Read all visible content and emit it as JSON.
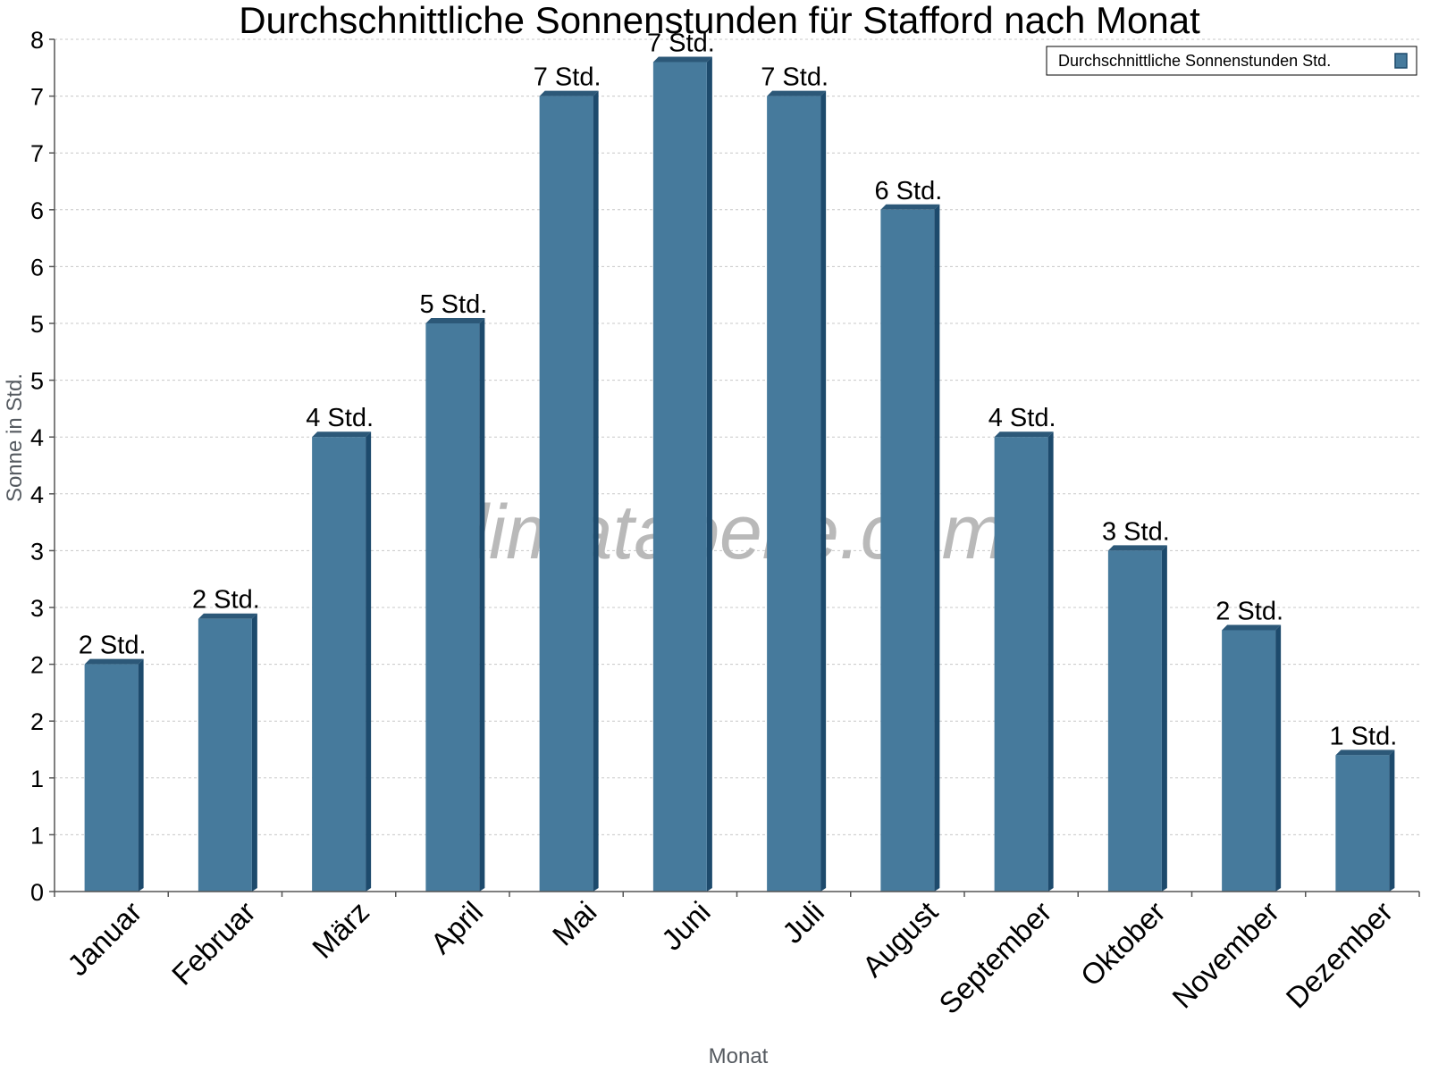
{
  "chart_data": {
    "type": "bar",
    "title": "Durchschnittliche Sonnenstunden für Stafford nach Monat",
    "xlabel": "Monat",
    "ylabel": "Sonne in Std.",
    "categories": [
      "Januar",
      "Februar",
      "März",
      "April",
      "Mai",
      "Juni",
      "Juli",
      "August",
      "September",
      "Oktober",
      "November",
      "Dezember"
    ],
    "series": [
      {
        "name": "Durchschnittliche Sonnenstunden Std.",
        "values": [
          2.0,
          2.4,
          4.0,
          5.0,
          7.0,
          7.3,
          7.0,
          6.0,
          4.0,
          3.0,
          2.3,
          1.2
        ],
        "labels": [
          "2 Std.",
          "2 Std.",
          "4 Std.",
          "5 Std.",
          "7 Std.",
          "7 Std.",
          "7 Std.",
          "6 Std.",
          "4 Std.",
          "3 Std.",
          "2 Std.",
          "1 Std."
        ]
      }
    ],
    "ylim": [
      0,
      7.5
    ],
    "yticks": [
      0,
      0.5,
      1,
      1.5,
      2,
      2.5,
      3,
      3.5,
      4,
      4.5,
      5,
      5.5,
      6,
      6.5,
      7,
      7.5
    ],
    "ytick_labels": [
      "0",
      "1",
      "1",
      "2",
      "2",
      "3",
      "3",
      "4",
      "4",
      "5",
      "5",
      "6",
      "6",
      "7",
      "7",
      "8"
    ],
    "grid": true,
    "legend_position": "top-right",
    "colors": {
      "bar": "#467a9c",
      "bar_side": "#1d4a6c",
      "bar_top": "#2c5878",
      "grid": "#c8c8c8",
      "axis": "#555555"
    }
  },
  "watermark": "klimatabelle.com"
}
